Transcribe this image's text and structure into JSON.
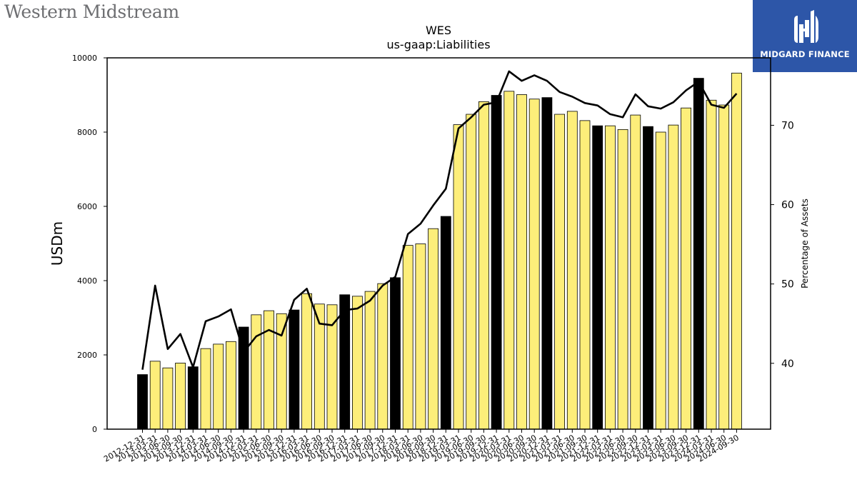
{
  "logos": {
    "left_text": "Western Midstream",
    "right_text": "MIDGARD FINANCE"
  },
  "chart_data": {
    "type": "bar",
    "title": "WES",
    "subtitle": "us-gaap:Liabilities",
    "ylabel": "USDm",
    "y2label": "Percentage of Assets",
    "ylim": [
      0,
      10000
    ],
    "y2lim": [
      31.7,
      78.5
    ],
    "yticks": [
      0,
      2000,
      4000,
      6000,
      8000,
      10000
    ],
    "y2ticks": [
      40,
      50,
      60,
      70
    ],
    "categories": [
      "2012-12-31",
      "2013-03-31",
      "2013-06-30",
      "2013-09-30",
      "2013-12-31",
      "2014-03-31",
      "2014-06-30",
      "2014-09-30",
      "2014-12-31",
      "2015-03-31",
      "2015-06-30",
      "2015-09-30",
      "2015-12-31",
      "2016-03-31",
      "2016-06-30",
      "2016-09-30",
      "2016-12-31",
      "2017-03-31",
      "2017-06-30",
      "2017-09-30",
      "2017-12-31",
      "2018-03-31",
      "2018-06-30",
      "2018-09-30",
      "2018-12-31",
      "2019-03-31",
      "2019-06-30",
      "2019-09-30",
      "2019-12-31",
      "2020-03-31",
      "2020-06-30",
      "2020-09-30",
      "2020-12-31",
      "2021-03-31",
      "2021-06-30",
      "2021-09-30",
      "2021-12-31",
      "2022-03-31",
      "2022-06-30",
      "2022-09-30",
      "2022-12-31",
      "2023-03-31",
      "2023-06-30",
      "2023-09-30",
      "2023-12-31",
      "2024-03-31",
      "2024-06-30",
      "2024-09-30"
    ],
    "highlighted_categories": [
      "2012-12-31",
      "2013-12-31",
      "2014-12-31",
      "2015-12-31",
      "2016-12-31",
      "2017-12-31",
      "2018-12-31",
      "2019-12-31",
      "2020-12-31",
      "2021-12-31",
      "2022-12-31",
      "2023-12-31"
    ],
    "series": [
      {
        "type": "bar",
        "axis": "left",
        "color": "#fdee7a",
        "highlight_color": "#000000",
        "values": [
          1470,
          1830,
          1650,
          1780,
          1680,
          2170,
          2290,
          2360,
          2750,
          3080,
          3190,
          3110,
          3210,
          3650,
          3370,
          3350,
          3620,
          3580,
          3710,
          3920,
          4080,
          4950,
          4990,
          5400,
          5730,
          8200,
          8480,
          8820,
          8990,
          9100,
          9010,
          8890,
          8930,
          8480,
          8560,
          8310,
          8170,
          8170,
          8070,
          8460,
          8150,
          8000,
          8190,
          8650,
          9450,
          8860,
          8730,
          9590
        ]
      },
      {
        "type": "line",
        "axis": "right",
        "color": "#000000",
        "values": [
          39.2,
          49.8,
          41.8,
          43.7,
          39.5,
          45.3,
          45.9,
          46.8,
          41.4,
          43.4,
          44.2,
          43.5,
          48.0,
          49.4,
          45.0,
          44.8,
          46.7,
          46.9,
          47.9,
          49.8,
          50.9,
          56.3,
          57.6,
          59.9,
          62.0,
          69.6,
          71.0,
          72.6,
          72.9,
          76.8,
          75.6,
          76.3,
          75.6,
          74.2,
          73.6,
          72.8,
          72.5,
          71.4,
          71.0,
          73.9,
          72.4,
          72.1,
          72.9,
          74.4,
          75.5,
          72.6,
          72.2,
          74.0
        ]
      }
    ],
    "grid": false,
    "legend": "none"
  }
}
